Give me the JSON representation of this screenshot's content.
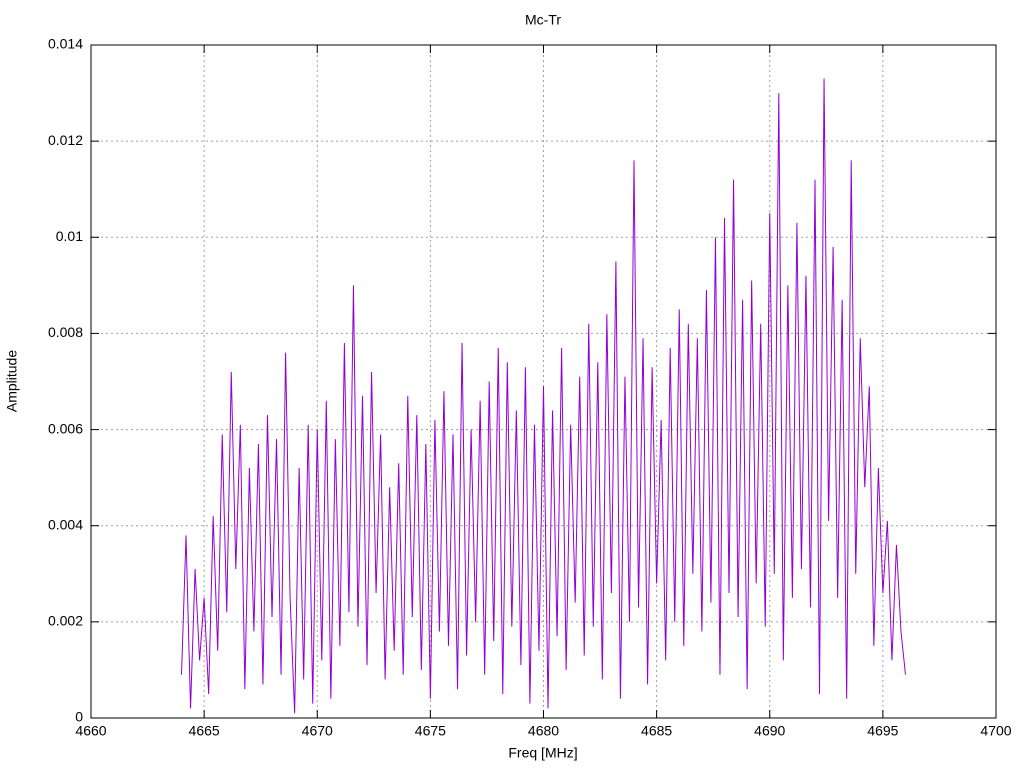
{
  "chart_data": {
    "type": "line",
    "title": "Mc-Tr",
    "x_label": "Freq [MHz]",
    "y_label": "Amplitude",
    "xlim": [
      4660,
      4700
    ],
    "xticks": [
      4660,
      4665,
      4670,
      4675,
      4680,
      4685,
      4690,
      4695,
      4700
    ],
    "ylim": [
      0,
      0.014
    ],
    "yticks": [
      0,
      0.002,
      0.004,
      0.006,
      0.008,
      0.01,
      0.012,
      0.014
    ],
    "grid": true,
    "x": [
      4664.0,
      4664.2,
      4664.4,
      4664.6,
      4664.8,
      4665.0,
      4665.2,
      4665.4,
      4665.6,
      4665.8,
      4666.0,
      4666.2,
      4666.4,
      4666.6,
      4666.8,
      4667.0,
      4667.2,
      4667.4,
      4667.6,
      4667.8,
      4668.0,
      4668.2,
      4668.4,
      4668.6,
      4668.8,
      4669.0,
      4669.2,
      4669.4,
      4669.6,
      4669.8,
      4670.0,
      4670.2,
      4670.4,
      4670.6,
      4670.8,
      4671.0,
      4671.2,
      4671.4,
      4671.6,
      4671.8,
      4672.0,
      4672.2,
      4672.4,
      4672.6,
      4672.8,
      4673.0,
      4673.2,
      4673.4,
      4673.6,
      4673.8,
      4674.0,
      4674.2,
      4674.4,
      4674.6,
      4674.8,
      4675.0,
      4675.2,
      4675.4,
      4675.6,
      4675.8,
      4676.0,
      4676.2,
      4676.4,
      4676.6,
      4676.8,
      4677.0,
      4677.2,
      4677.4,
      4677.6,
      4677.8,
      4678.0,
      4678.2,
      4678.4,
      4678.6,
      4678.8,
      4679.0,
      4679.2,
      4679.4,
      4679.6,
      4679.8,
      4680.0,
      4680.2,
      4680.4,
      4680.6,
      4680.8,
      4681.0,
      4681.2,
      4681.4,
      4681.6,
      4681.8,
      4682.0,
      4682.2,
      4682.4,
      4682.6,
      4682.8,
      4683.0,
      4683.2,
      4683.4,
      4683.6,
      4683.8,
      4684.0,
      4684.2,
      4684.4,
      4684.6,
      4684.8,
      4685.0,
      4685.2,
      4685.4,
      4685.6,
      4685.8,
      4686.0,
      4686.2,
      4686.4,
      4686.6,
      4686.8,
      4687.0,
      4687.2,
      4687.4,
      4687.6,
      4687.8,
      4688.0,
      4688.2,
      4688.4,
      4688.6,
      4688.8,
      4689.0,
      4689.2,
      4689.4,
      4689.6,
      4689.8,
      4690.0,
      4690.2,
      4690.4,
      4690.6,
      4690.8,
      4691.0,
      4691.2,
      4691.4,
      4691.6,
      4691.8,
      4692.0,
      4692.2,
      4692.4,
      4692.6,
      4692.8,
      4693.0,
      4693.2,
      4693.4,
      4693.6,
      4693.8,
      4694.0,
      4694.2,
      4694.4,
      4694.6,
      4694.8,
      4695.0,
      4695.2,
      4695.4,
      4695.6,
      4695.8,
      4696.0
    ],
    "series": [
      {
        "color": "#9400d3",
        "values": [
          0.0009,
          0.0038,
          0.0002,
          0.0031,
          0.0012,
          0.0025,
          0.0005,
          0.0042,
          0.0014,
          0.0059,
          0.0022,
          0.0072,
          0.0031,
          0.0061,
          0.0006,
          0.0052,
          0.0018,
          0.0057,
          0.0007,
          0.0063,
          0.0021,
          0.0058,
          0.0009,
          0.0076,
          0.0025,
          0.0001,
          0.0052,
          0.0008,
          0.0061,
          0.0003,
          0.006,
          0.0012,
          0.0066,
          0.0004,
          0.0058,
          0.0015,
          0.0078,
          0.0022,
          0.009,
          0.0019,
          0.0067,
          0.0011,
          0.0072,
          0.0026,
          0.0059,
          0.0008,
          0.0048,
          0.0014,
          0.0053,
          0.0009,
          0.0067,
          0.0021,
          0.0063,
          0.001,
          0.0057,
          0.0004,
          0.0062,
          0.0018,
          0.0068,
          0.0015,
          0.0059,
          0.0006,
          0.0078,
          0.0013,
          0.006,
          0.002,
          0.0066,
          0.0009,
          0.007,
          0.0016,
          0.0077,
          0.0005,
          0.0074,
          0.0019,
          0.0064,
          0.0011,
          0.0073,
          0.0003,
          0.0061,
          0.0014,
          0.0069,
          0.0002,
          0.0064,
          0.0017,
          0.0077,
          0.001,
          0.0061,
          0.0024,
          0.0071,
          0.0013,
          0.0082,
          0.0019,
          0.0074,
          0.0008,
          0.0084,
          0.0026,
          0.0095,
          0.0004,
          0.0071,
          0.002,
          0.0116,
          0.0023,
          0.0079,
          0.0007,
          0.0073,
          0.0028,
          0.0062,
          0.0012,
          0.0077,
          0.002,
          0.0085,
          0.0015,
          0.0082,
          0.003,
          0.0079,
          0.0018,
          0.0089,
          0.0024,
          0.01,
          0.0009,
          0.0104,
          0.0026,
          0.0112,
          0.0021,
          0.0087,
          0.0006,
          0.0091,
          0.0028,
          0.0082,
          0.0019,
          0.0105,
          0.003,
          0.013,
          0.0012,
          0.009,
          0.0025,
          0.0103,
          0.0031,
          0.0092,
          0.0023,
          0.0112,
          0.0005,
          0.0133,
          0.0041,
          0.0098,
          0.0025,
          0.0087,
          0.0004,
          0.0116,
          0.003,
          0.0079,
          0.0048,
          0.0069,
          0.0015,
          0.0052,
          0.0026,
          0.0041,
          0.0012,
          0.0036,
          0.0018,
          0.0009
        ]
      }
    ]
  }
}
